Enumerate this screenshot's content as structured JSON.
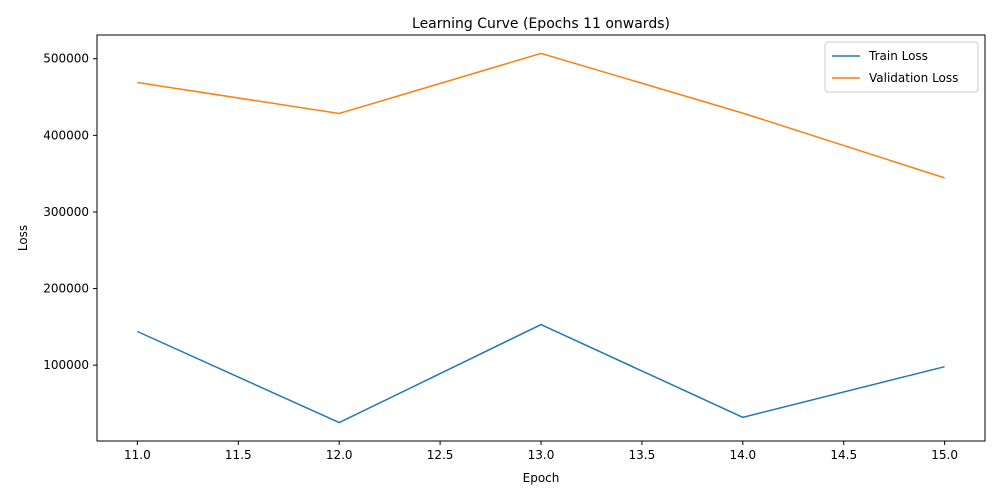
{
  "chart_data": {
    "type": "line",
    "title": "Learning Curve (Epochs 11 onwards)",
    "xlabel": "Epoch",
    "ylabel": "Loss",
    "x": [
      11,
      12,
      13,
      14,
      15
    ],
    "series": [
      {
        "name": "Train Loss",
        "color": "#1f77b4",
        "values": [
          144000,
          25000,
          153000,
          32000,
          98000
        ]
      },
      {
        "name": "Validation Loss",
        "color": "#ff7f0e",
        "values": [
          469000,
          428500,
          507000,
          429000,
          344500
        ]
      }
    ],
    "xlim": [
      10.8,
      15.2
    ],
    "ylim": [
      1000,
      531000
    ],
    "xticks": [
      11.0,
      11.5,
      12.0,
      12.5,
      13.0,
      13.5,
      14.0,
      14.5,
      15.0
    ],
    "xtick_labels": [
      "11.0",
      "11.5",
      "12.0",
      "12.5",
      "13.0",
      "13.5",
      "14.0",
      "14.5",
      "15.0"
    ],
    "yticks": [
      100000,
      200000,
      300000,
      400000,
      500000
    ],
    "ytick_labels": [
      "100000",
      "200000",
      "300000",
      "400000",
      "500000"
    ],
    "grid": false,
    "legend_position": "top-right"
  }
}
